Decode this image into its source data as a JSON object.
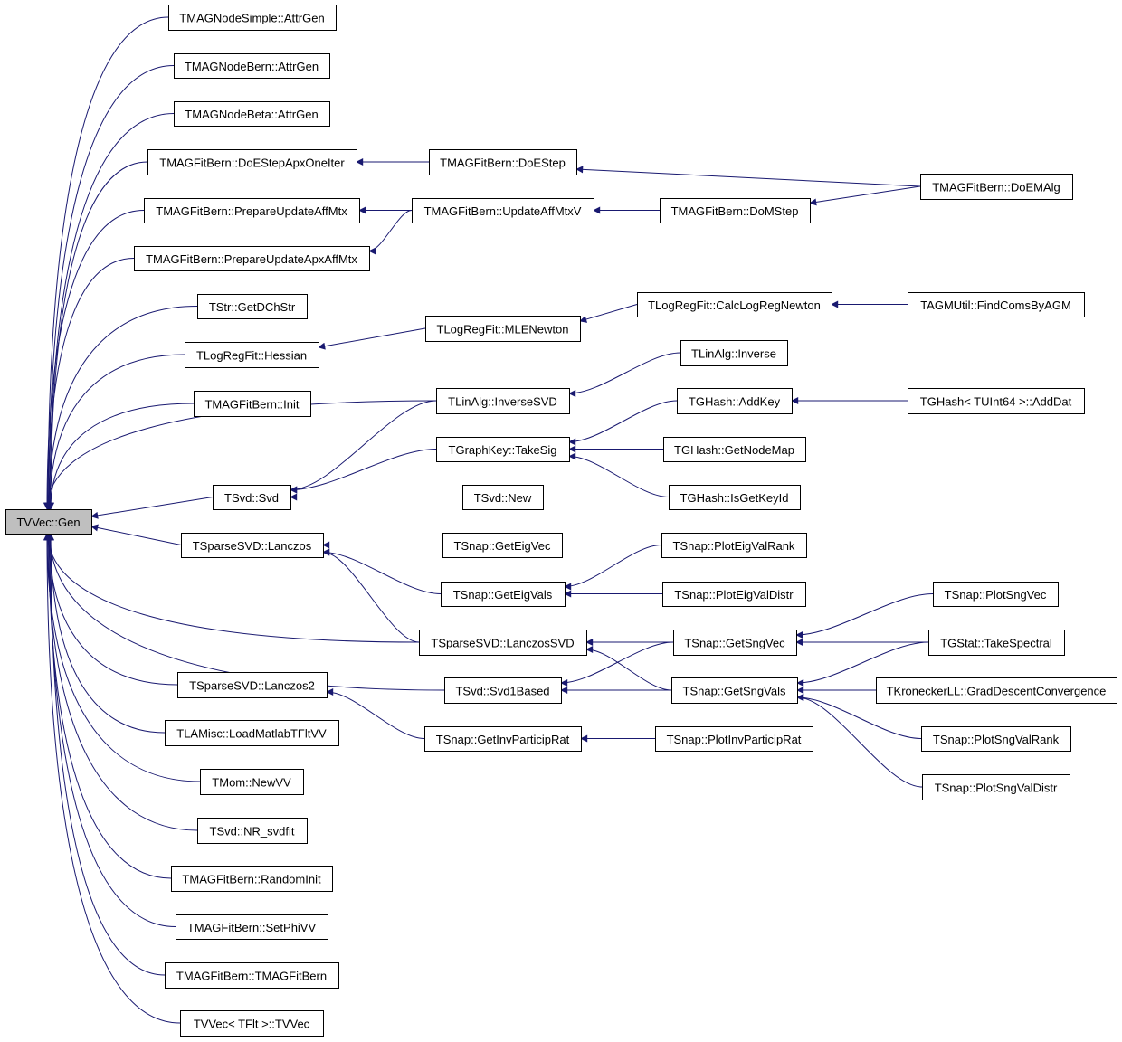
{
  "colors": {
    "edge": "#191970",
    "root_fill": "#bfbfbf",
    "node_fill": "#ffffff",
    "node_border": "#000000"
  },
  "root": "gen",
  "nodes": {
    "gen": "TVVec::Gen",
    "attrgenSimple": "TMAGNodeSimple::AttrGen",
    "attrgenBern": "TMAGNodeBern::AttrGen",
    "attrgenBeta": "TMAGNodeBeta::AttrGen",
    "doEStepApx": "TMAGFitBern::DoEStepApxOneIter",
    "prepAff": "TMAGFitBern::PrepareUpdateAffMtx",
    "prepApxAff": "TMAGFitBern::PrepareUpdateApxAffMtx",
    "getDChStr": "TStr::GetDChStr",
    "hessian": "TLogRegFit::Hessian",
    "magInit": "TMAGFitBern::Init",
    "svd": "TSvd::Svd",
    "lanczos": "TSparseSVD::Lanczos",
    "lanczos2": "TSparseSVD::Lanczos2",
    "loadMatlab": "TLAMisc::LoadMatlabTFltVV",
    "newVV": "TMom::NewVV",
    "nrSvdfit": "TSvd::NR_svdfit",
    "randomInit": "TMAGFitBern::RandomInit",
    "setPhiVV": "TMAGFitBern::SetPhiVV",
    "magCtor": "TMAGFitBern::TMAGFitBern",
    "tvvecCtor": "TVVec< TFlt >::TVVec",
    "doEStep": "TMAGFitBern::DoEStep",
    "updAff": "TMAGFitBern::UpdateAffMtxV",
    "mleNewton": "TLogRegFit::MLENewton",
    "inverseSVD": "TLinAlg::InverseSVD",
    "takeSig": "TGraphKey::TakeSig",
    "svdNew": "TSvd::New",
    "getEigVec": "TSnap::GetEigVec",
    "getEigVals": "TSnap::GetEigVals",
    "lanczosSVD": "TSparseSVD::LanczosSVD",
    "svd1Based": "TSvd::Svd1Based",
    "getInvPR": "TSnap::GetInvParticipRat",
    "doMStep": "TMAGFitBern::DoMStep",
    "calcLogReg": "TLogRegFit::CalcLogRegNewton",
    "inverse": "TLinAlg::Inverse",
    "addKey": "TGHash::AddKey",
    "getNodeMap": "TGHash::GetNodeMap",
    "isGetKeyId": "TGHash::IsGetKeyId",
    "plotEigValRank": "TSnap::PlotEigValRank",
    "plotEigValDistr": "TSnap::PlotEigValDistr",
    "getSngVec": "TSnap::GetSngVec",
    "getSngVals": "TSnap::GetSngVals",
    "plotInvPR": "TSnap::PlotInvParticipRat",
    "doEMAlg": "TMAGFitBern::DoEMAlg",
    "findComs": "TAGMUtil::FindComsByAGM",
    "addDat": "TGHash< TUInt64 >::AddDat",
    "plotSngVec": "TSnap::PlotSngVec",
    "takeSpectral": "TGStat::TakeSpectral",
    "gradDescent": "TKroneckerLL::GradDescentConvergence",
    "plotSngValRank": "TSnap::PlotSngValRank",
    "plotSngValDistr": "TSnap::PlotSngValDistr"
  },
  "edges": [
    [
      "attrgenSimple",
      "gen"
    ],
    [
      "attrgenBern",
      "gen"
    ],
    [
      "attrgenBeta",
      "gen"
    ],
    [
      "doEStepApx",
      "gen"
    ],
    [
      "prepAff",
      "gen"
    ],
    [
      "prepApxAff",
      "gen"
    ],
    [
      "getDChStr",
      "gen"
    ],
    [
      "hessian",
      "gen"
    ],
    [
      "magInit",
      "gen"
    ],
    [
      "inverseSVD",
      "gen"
    ],
    [
      "svd",
      "gen"
    ],
    [
      "lanczos",
      "gen"
    ],
    [
      "lanczosSVD",
      "gen"
    ],
    [
      "lanczos2",
      "gen"
    ],
    [
      "svd1Based",
      "gen"
    ],
    [
      "loadMatlab",
      "gen"
    ],
    [
      "newVV",
      "gen"
    ],
    [
      "nrSvdfit",
      "gen"
    ],
    [
      "randomInit",
      "gen"
    ],
    [
      "setPhiVV",
      "gen"
    ],
    [
      "magCtor",
      "gen"
    ],
    [
      "tvvecCtor",
      "gen"
    ],
    [
      "doEStep",
      "doEStepApx"
    ],
    [
      "doEMAlg",
      "doEStep"
    ],
    [
      "updAff",
      "prepAff"
    ],
    [
      "updAff",
      "prepApxAff"
    ],
    [
      "doMStep",
      "updAff"
    ],
    [
      "doEMAlg",
      "doMStep"
    ],
    [
      "mleNewton",
      "hessian"
    ],
    [
      "calcLogReg",
      "mleNewton"
    ],
    [
      "findComs",
      "calcLogReg"
    ],
    [
      "inverseSVD",
      "svd"
    ],
    [
      "takeSig",
      "svd"
    ],
    [
      "svdNew",
      "svd"
    ],
    [
      "inverse",
      "inverseSVD"
    ],
    [
      "addKey",
      "takeSig"
    ],
    [
      "getNodeMap",
      "takeSig"
    ],
    [
      "isGetKeyId",
      "takeSig"
    ],
    [
      "addDat",
      "addKey"
    ],
    [
      "getEigVec",
      "lanczos"
    ],
    [
      "getEigVals",
      "lanczos"
    ],
    [
      "lanczosSVD",
      "lanczos"
    ],
    [
      "plotEigValRank",
      "getEigVals"
    ],
    [
      "plotEigValDistr",
      "getEigVals"
    ],
    [
      "getSngVec",
      "lanczosSVD"
    ],
    [
      "getSngVals",
      "lanczosSVD"
    ],
    [
      "getSngVec",
      "svd1Based"
    ],
    [
      "getSngVals",
      "svd1Based"
    ],
    [
      "plotSngVec",
      "getSngVec"
    ],
    [
      "takeSpectral",
      "getSngVec"
    ],
    [
      "takeSpectral",
      "getSngVals"
    ],
    [
      "gradDescent",
      "getSngVals"
    ],
    [
      "plotSngValRank",
      "getSngVals"
    ],
    [
      "plotSngValDistr",
      "getSngVals"
    ],
    [
      "getInvPR",
      "lanczos2"
    ],
    [
      "plotInvPR",
      "getInvPR"
    ]
  ]
}
